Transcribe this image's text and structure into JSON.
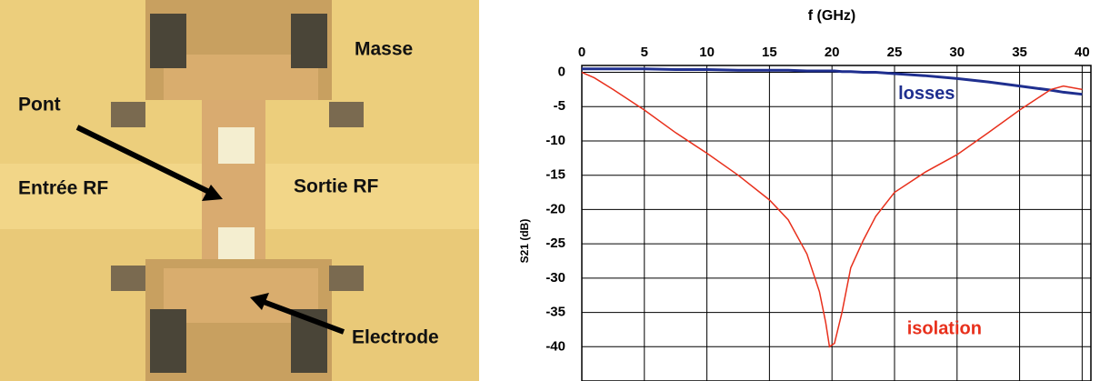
{
  "image": {
    "labels": {
      "masse": "Masse",
      "pont": "Pont",
      "entree": "Entrée RF",
      "sortie": "Sortie RF",
      "electrode": "Electrode"
    }
  },
  "chart_data": {
    "type": "line",
    "title": "f (GHz)",
    "y_label": "S21 (dB)",
    "x": [
      0,
      1,
      2.5,
      5,
      7.5,
      10,
      12.5,
      15,
      16.5,
      18,
      19,
      19.5,
      19.8,
      20.2,
      20.8,
      21.5,
      22.5,
      23.5,
      25,
      27.5,
      30,
      32.5,
      35,
      37.5,
      38.5,
      40
    ],
    "series": [
      {
        "name": "losses",
        "color": "#1f2f8f",
        "values": [
          0.5,
          0.5,
          0.5,
          0.5,
          0.4,
          0.4,
          0.3,
          0.3,
          0.3,
          0.2,
          0.2,
          0.2,
          0.2,
          0.2,
          0.1,
          0.1,
          0,
          0,
          -0.2,
          -0.5,
          -0.9,
          -1.4,
          -2,
          -2.6,
          -2.9,
          -3.2
        ]
      },
      {
        "name": "isolation",
        "color": "#e8301c",
        "values": [
          0,
          -0.8,
          -2.5,
          -5.5,
          -8.8,
          -11.8,
          -15,
          -18.6,
          -21.5,
          -26.5,
          -32,
          -36.5,
          -40,
          -39.5,
          -35,
          -28.5,
          -24.5,
          -21,
          -17.5,
          -14.5,
          -12,
          -8.8,
          -5.5,
          -2.5,
          -2,
          -2.5
        ]
      }
    ],
    "xlim": [
      0,
      40.7
    ],
    "xticks": [
      0,
      5,
      10,
      15,
      20,
      25,
      30,
      35,
      40
    ],
    "ylim": [
      -45,
      1
    ],
    "yticks": [
      0,
      -5,
      -10,
      -15,
      -20,
      -25,
      -30,
      -35,
      -40
    ],
    "grid": true
  }
}
